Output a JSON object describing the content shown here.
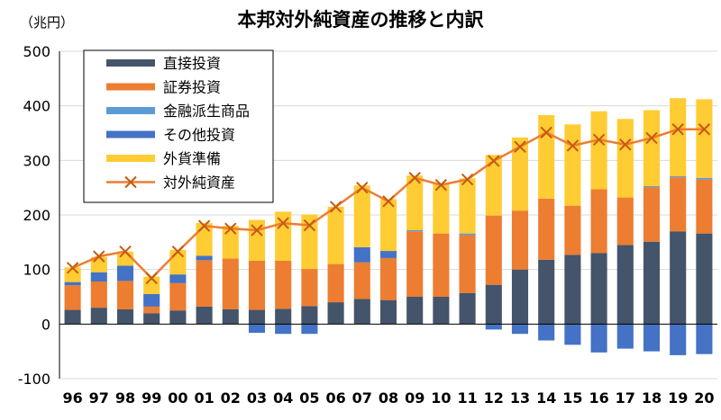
{
  "chart_data": {
    "type": "bar",
    "title": "本邦対外純資産の推移と内訳",
    "unit_label": "（兆円）",
    "categories": [
      "96",
      "97",
      "98",
      "99",
      "00",
      "01",
      "02",
      "03",
      "04",
      "05",
      "06",
      "07",
      "08",
      "09",
      "10",
      "11",
      "12",
      "13",
      "14",
      "15",
      "16",
      "17",
      "18",
      "19",
      "20"
    ],
    "ylim": [
      -100,
      500
    ],
    "yticks": [
      -100,
      0,
      100,
      200,
      300,
      400,
      500
    ],
    "legend_position": "top-left",
    "series": [
      {
        "name": "直接投資",
        "color": "#44546A",
        "values": [
          26,
          30,
          27,
          20,
          25,
          32,
          27,
          26,
          28,
          33,
          40,
          46,
          44,
          50,
          50,
          57,
          72,
          100,
          118,
          127,
          130,
          145,
          151,
          170,
          166
        ]
      },
      {
        "name": "証券投資",
        "color": "#ED7D31",
        "values": [
          45,
          48,
          52,
          12,
          50,
          85,
          93,
          90,
          88,
          68,
          70,
          67,
          77,
          120,
          116,
          106,
          127,
          108,
          112,
          90,
          117,
          87,
          100,
          99,
          99
        ]
      },
      {
        "name": "金融派生商品",
        "color": "#5B9BD5",
        "values": [
          0,
          0,
          0,
          0,
          0,
          0,
          0,
          0,
          0,
          0,
          0,
          0,
          0,
          2,
          0,
          3,
          0,
          0,
          0,
          0,
          0,
          0,
          2,
          2,
          3
        ]
      },
      {
        "name": "その他投資",
        "color": "#4472C4",
        "values": [
          6,
          17,
          28,
          23,
          16,
          8,
          0,
          -16,
          -18,
          -18,
          0,
          28,
          13,
          0,
          0,
          0,
          -10,
          -18,
          -30,
          -38,
          -52,
          -45,
          -50,
          -57,
          -55
        ]
      },
      {
        "name": "外貨準備",
        "color": "#FFCC33",
        "values": [
          27,
          28,
          26,
          32,
          45,
          60,
          60,
          75,
          90,
          100,
          105,
          113,
          95,
          100,
          92,
          101,
          111,
          134,
          153,
          149,
          143,
          144,
          139,
          143,
          144
        ]
      },
      {
        "name": "対外純資産",
        "color": "#ED7D31",
        "type": "line",
        "values": [
          103,
          124,
          133,
          84,
          133,
          180,
          175,
          172,
          185,
          181,
          215,
          250,
          225,
          268,
          255,
          265,
          299,
          325,
          351,
          327,
          338,
          329,
          341,
          357,
          357
        ]
      }
    ]
  }
}
